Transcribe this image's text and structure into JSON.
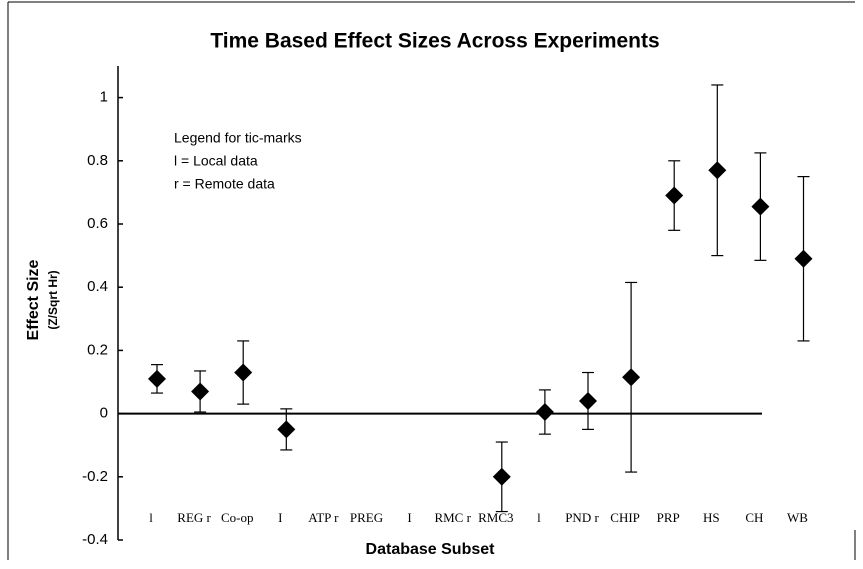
{
  "chart_data": {
    "type": "errorbar",
    "title": "Time Based Effect Sizes Across Experiments",
    "xlabel": "Database Subset",
    "ylabel": "Effect Size",
    "ylabel_sub": "(Z/Sqrt Hr)",
    "annotations": [
      "Legend for tic-marks",
      "l = Local data",
      "r = Remote data"
    ],
    "categories": [
      "l",
      "REG r",
      "Co-op",
      "I",
      "ATP r",
      "PREG",
      "I",
      "RMC r",
      "RMC3",
      "l",
      "PND r",
      "CHIP",
      "PRP",
      "HS",
      "CH",
      "WB"
    ],
    "values": [
      0.11,
      0.07,
      0.13,
      -0.05,
      null,
      null,
      null,
      null,
      -0.2,
      0.005,
      0.04,
      0.115,
      0.69,
      0.77,
      0.655,
      0.49
    ],
    "errors": [
      0.045,
      0.065,
      0.1,
      0.065,
      null,
      null,
      null,
      null,
      0.11,
      0.07,
      0.09,
      0.3,
      0.11,
      0.27,
      0.17,
      0.26
    ],
    "color": "#000000",
    "ylim": [
      -0.4,
      1.1
    ],
    "yticks": [
      -0.4,
      -0.2,
      0,
      0.2,
      0.4,
      0.6,
      0.8,
      1
    ]
  }
}
